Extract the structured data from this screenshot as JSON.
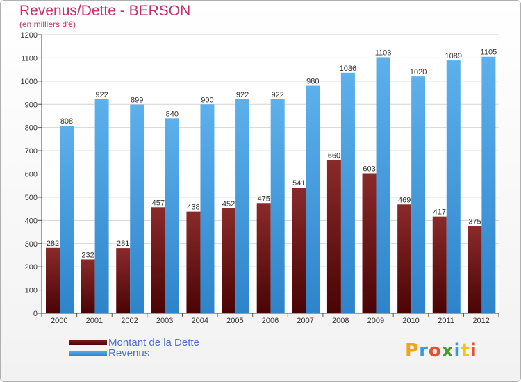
{
  "chart_data": {
    "type": "bar",
    "title": "Revenus/Dette - BERSON",
    "subtitle": "(en milliers d'€)",
    "categories": [
      "2000",
      "2001",
      "2002",
      "2003",
      "2004",
      "2005",
      "2006",
      "2007",
      "2008",
      "2009",
      "2010",
      "2011",
      "2012"
    ],
    "series": [
      {
        "name": "Montant de la Dette",
        "values": [
          282,
          232,
          281,
          457,
          438,
          452,
          475,
          541,
          660,
          603,
          469,
          417,
          375
        ],
        "color": "#6e1212"
      },
      {
        "name": "Revenus",
        "values": [
          808,
          922,
          899,
          840,
          900,
          922,
          922,
          980,
          1036,
          1103,
          1020,
          1089,
          1105
        ],
        "color": "#4da3e6"
      }
    ],
    "ylim": [
      0,
      1200
    ],
    "yticks": [
      0,
      100,
      200,
      300,
      400,
      500,
      600,
      700,
      800,
      900,
      1000,
      1100,
      1200
    ],
    "grid": true,
    "legend": "bottom-left"
  },
  "logo": {
    "text": "Proxiti",
    "letters": [
      "P",
      "r",
      "o",
      "x",
      "i",
      "t",
      "i"
    ],
    "colors": [
      "#f4a21a",
      "#3a9ad9",
      "#e8502e",
      "#4a9a2c",
      "#3a9ad9",
      "#f4c21a",
      "#e8502e"
    ]
  }
}
